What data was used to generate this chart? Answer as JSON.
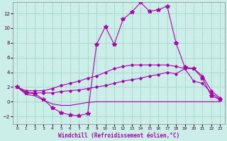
{
  "xlabel": "Windchill (Refroidissement éolien,°C)",
  "background_color": "#cceee8",
  "grid_color": "#aad8d2",
  "line_color": "#aa00aa",
  "xlim": [
    -0.5,
    23.5
  ],
  "ylim": [
    -3.0,
    13.5
  ],
  "yticks": [
    -2,
    0,
    2,
    4,
    6,
    8,
    10,
    12
  ],
  "xticks": [
    0,
    1,
    2,
    3,
    4,
    5,
    6,
    7,
    8,
    9,
    10,
    11,
    12,
    13,
    14,
    15,
    16,
    17,
    18,
    19,
    20,
    21,
    22,
    23
  ],
  "hours": [
    0,
    1,
    2,
    3,
    4,
    5,
    6,
    7,
    8,
    9,
    10,
    11,
    12,
    13,
    14,
    15,
    16,
    17,
    18,
    19,
    20,
    21,
    22,
    23
  ],
  "windchill": [
    2.0,
    1.2,
    1.1,
    0.3,
    -0.8,
    -1.5,
    -1.8,
    -1.9,
    -1.6,
    7.8,
    10.2,
    7.8,
    11.2,
    12.2,
    13.5,
    12.3,
    12.5,
    13.0,
    8.0,
    4.7,
    4.5,
    3.2,
    0.8,
    0.3
  ],
  "max_line": [
    2.0,
    1.5,
    1.5,
    1.5,
    1.8,
    2.2,
    2.5,
    2.8,
    3.2,
    3.5,
    4.0,
    4.5,
    4.8,
    5.0,
    5.0,
    5.0,
    5.0,
    5.0,
    4.8,
    4.5,
    4.5,
    3.5,
    1.5,
    0.5
  ],
  "mean_line": [
    2.0,
    1.3,
    1.2,
    1.2,
    1.2,
    1.4,
    1.5,
    1.6,
    1.8,
    2.0,
    2.2,
    2.5,
    2.8,
    3.0,
    3.2,
    3.5,
    3.7,
    4.0,
    3.8,
    4.5,
    2.8,
    2.5,
    1.2,
    0.3
  ],
  "min_line": [
    2.0,
    1.0,
    0.8,
    0.2,
    -0.3,
    -0.5,
    -0.5,
    -0.3,
    -0.1,
    0.0,
    0.0,
    0.0,
    0.0,
    0.0,
    0.0,
    0.0,
    0.0,
    0.0,
    0.0,
    0.0,
    0.0,
    0.0,
    0.0,
    0.0
  ]
}
